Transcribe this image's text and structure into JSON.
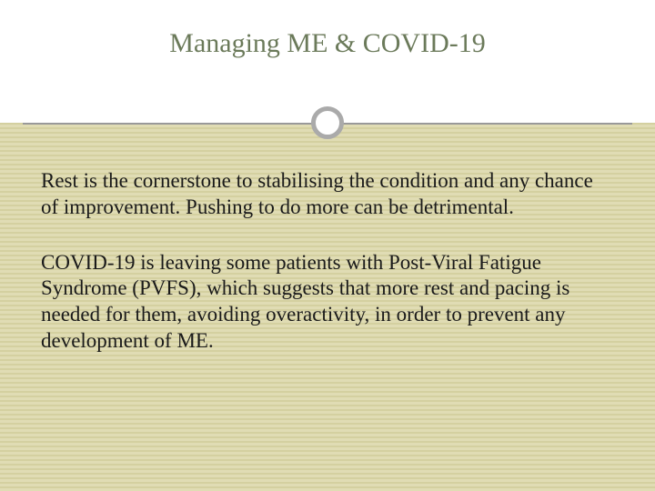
{
  "slide": {
    "title": "Managing ME & COVID-19",
    "paragraph1": "Rest is the cornerstone to stabilising the condition and any chance of improvement. Pushing to do more can be detrimental.",
    "paragraph2": "COVID-19 is leaving some patients with Post-Viral Fatigue Syndrome (PVFS), which suggests that more rest and pacing is needed for them, avoiding overactivity, in order to prevent any development of ME."
  },
  "styling": {
    "title_color": "#6b7a5a",
    "title_fontsize": 30,
    "body_fontsize": 23,
    "body_color": "#1a1a1a",
    "background_top": "#ffffff",
    "background_bottom_stripe1": "#d4d0a0",
    "background_bottom_stripe2": "#e0dcb4",
    "divider_color": "#999999",
    "circle_border_color": "#aaaaaa",
    "font_family": "Georgia, serif"
  }
}
